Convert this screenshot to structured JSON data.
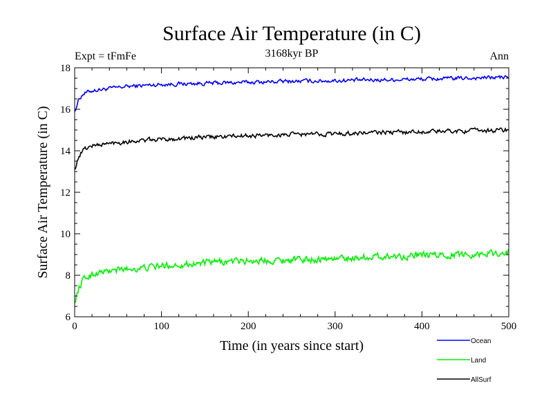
{
  "chart_data": {
    "type": "line",
    "title": "Surface Air Temperature (in C)",
    "subtitle": "3168kyr BP",
    "annotation_left": "Expt = tFmFe",
    "annotation_right": "Ann",
    "xlabel": "Time (in years since start)",
    "ylabel": "Surface Air Temperature (in C)",
    "xlim": [
      0,
      500
    ],
    "ylim": [
      6,
      18
    ],
    "xticks": [
      0,
      100,
      200,
      300,
      400,
      500
    ],
    "yticks": [
      6,
      8,
      10,
      12,
      14,
      16,
      18
    ],
    "series": [
      {
        "name": "Ocean",
        "color": "#0000ff",
        "x": [
          0,
          5,
          10,
          20,
          30,
          40,
          50,
          60,
          80,
          100,
          150,
          200,
          250,
          300,
          350,
          400,
          450,
          500
        ],
        "values": [
          15.9,
          16.5,
          16.75,
          16.9,
          16.95,
          17.0,
          17.05,
          17.1,
          17.15,
          17.2,
          17.25,
          17.3,
          17.35,
          17.38,
          17.42,
          17.45,
          17.5,
          17.55
        ]
      },
      {
        "name": "Land",
        "color": "#00ee00",
        "x": [
          0,
          5,
          10,
          20,
          30,
          40,
          50,
          60,
          80,
          100,
          150,
          200,
          250,
          300,
          350,
          400,
          450,
          500
        ],
        "values": [
          6.7,
          7.4,
          7.8,
          8.05,
          8.15,
          8.2,
          8.25,
          8.3,
          8.35,
          8.45,
          8.6,
          8.7,
          8.75,
          8.8,
          8.9,
          8.95,
          9.0,
          9.1
        ]
      },
      {
        "name": "AllSurf",
        "color": "#000000",
        "x": [
          0,
          5,
          10,
          20,
          30,
          40,
          50,
          60,
          80,
          100,
          150,
          200,
          250,
          300,
          350,
          400,
          450,
          500
        ],
        "values": [
          13.1,
          13.75,
          14.05,
          14.25,
          14.3,
          14.35,
          14.4,
          14.45,
          14.5,
          14.55,
          14.65,
          14.72,
          14.78,
          14.82,
          14.88,
          14.92,
          14.96,
          15.0
        ]
      }
    ]
  }
}
